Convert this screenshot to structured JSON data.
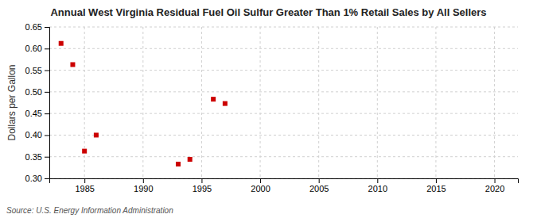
{
  "chart_data": {
    "type": "scatter",
    "title": "Annual West Virginia Residual Fuel Oil Sulfur Greater Than 1% Retail Sales by All Sellers",
    "ylabel": "Dollars per Gallon",
    "source": "Source: U.S. Energy Information Administration",
    "x": [
      1983,
      1984,
      1985,
      1986,
      1993,
      1994,
      1996,
      1997
    ],
    "values": [
      0.612,
      0.563,
      0.363,
      0.4,
      0.333,
      0.344,
      0.483,
      0.473
    ],
    "color": "#cc0000",
    "marker": "square",
    "xlim": [
      1982,
      2022
    ],
    "ylim": [
      0.3,
      0.65
    ],
    "xticks": [
      1985,
      1990,
      1995,
      2000,
      2005,
      2010,
      2015,
      2020
    ],
    "yticks": [
      {
        "value": 0.3,
        "label": "0.30"
      },
      0.35,
      {
        "value": 0.4,
        "label": "0.40"
      },
      0.45,
      {
        "value": 0.5,
        "label": "0.50"
      },
      0.55,
      {
        "value": 0.6,
        "label": "0.60"
      },
      0.65
    ],
    "grid": true
  }
}
